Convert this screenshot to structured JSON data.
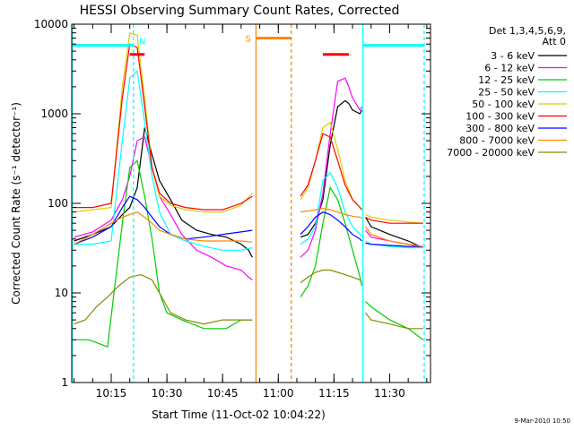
{
  "chart_data": {
    "type": "line",
    "title": "HESSI Observing Summary Count Rates, Corrected",
    "xlabel": "Start Time (11-Oct-02 10:04:22)",
    "ylabel": "Corrected Count Rate (s⁻¹ detector⁻¹)",
    "y_scale": "log",
    "ylim": [
      1,
      10000
    ],
    "xlim": [
      "10:04:22",
      "11:41:00"
    ],
    "x_ticks": [
      "10:15",
      "10:30",
      "10:45",
      "11:00",
      "11:15",
      "11:30"
    ],
    "y_ticks": [
      "1",
      "10",
      "100",
      "1000",
      "10000"
    ],
    "legend": {
      "header": [
        "Det 1,3,4,5,6,9,",
        "Att 0"
      ],
      "placement": "right"
    },
    "series": [
      {
        "name": "3 - 6 keV",
        "color": "#000000",
        "x": [
          "10:05",
          "10:10",
          "10:15",
          "10:18",
          "10:20",
          "10:22",
          "10:24",
          "10:26",
          "10:28",
          "10:31",
          "10:34",
          "10:38",
          "10:42",
          "10:46",
          "10:50",
          "10:52",
          "10:53",
          "GAP",
          "11:06",
          "11:08",
          "11:10",
          "11:12",
          "11:14",
          "11:16",
          "11:18",
          "11:19",
          "11:20",
          "11:22",
          "11:22.5",
          "GAP",
          "11:23.5",
          "11:25",
          "11:30",
          "11:35",
          "11:39"
        ],
        "y": [
          38,
          45,
          55,
          75,
          90,
          150,
          700,
          350,
          180,
          110,
          65,
          50,
          45,
          42,
          35,
          30,
          25,
          null,
          42,
          45,
          60,
          110,
          450,
          1200,
          1400,
          1300,
          1100,
          1000,
          1100,
          null,
          70,
          55,
          45,
          38,
          32
        ]
      },
      {
        "name": "6 - 12 keV",
        "color": "#ff00ff",
        "x": [
          "10:05",
          "10:10",
          "10:15",
          "10:18",
          "10:20",
          "10:22",
          "10:24",
          "10:26",
          "10:28",
          "10:31",
          "10:34",
          "10:38",
          "10:42",
          "10:46",
          "10:50",
          "10:52",
          "10:53",
          "GAP",
          "11:06",
          "11:08",
          "11:10",
          "11:12",
          "11:14",
          "11:16",
          "11:18",
          "11:19",
          "11:20",
          "11:22",
          "11:22.5",
          "GAP",
          "11:23.5",
          "11:25",
          "11:30",
          "11:35",
          "11:39"
        ],
        "y": [
          42,
          48,
          65,
          110,
          200,
          500,
          550,
          250,
          120,
          75,
          45,
          30,
          25,
          20,
          18,
          15,
          14,
          null,
          25,
          30,
          50,
          130,
          600,
          2300,
          2500,
          2000,
          1500,
          1100,
          1200,
          null,
          50,
          42,
          38,
          35,
          32
        ]
      },
      {
        "name": "12 - 25 keV",
        "color": "#00cc00",
        "x": [
          "10:05",
          "10:09",
          "10:14",
          "10:18",
          "10:20",
          "10:22",
          "10:24",
          "10:26",
          "10:28",
          "10:30",
          "10:34",
          "10:40",
          "10:46",
          "10:50",
          "10:53",
          "GAP",
          "11:06",
          "11:08",
          "11:10",
          "11:12",
          "11:14",
          "11:16",
          "11:18",
          "11:20",
          "11:22",
          "11:22.5",
          "GAP",
          "11:23.5",
          "11:25",
          "11:30",
          "11:35",
          "11:39"
        ],
        "y": [
          3,
          3,
          2.5,
          60,
          250,
          300,
          120,
          40,
          10,
          6,
          5,
          4,
          4,
          5,
          5,
          null,
          9,
          12,
          20,
          60,
          150,
          110,
          60,
          30,
          15,
          12,
          null,
          8,
          7,
          5,
          4,
          3
        ]
      },
      {
        "name": "25 - 50 keV",
        "color": "#00ffff",
        "x": [
          "10:05",
          "10:10",
          "10:15",
          "10:18",
          "10:20",
          "10:22",
          "10:24",
          "10:26",
          "10:28",
          "10:31",
          "10:35",
          "10:40",
          "10:45",
          "10:50",
          "10:53",
          "GAP",
          "11:06",
          "11:08",
          "11:10",
          "11:12",
          "11:14",
          "11:16",
          "11:18",
          "11:20",
          "11:22",
          "11:22.5",
          "GAP",
          "11:23.5",
          "11:25",
          "11:30",
          "11:35",
          "11:39"
        ],
        "y": [
          35,
          35,
          38,
          500,
          2500,
          3000,
          800,
          200,
          80,
          45,
          38,
          33,
          30,
          30,
          32,
          null,
          35,
          40,
          55,
          180,
          220,
          150,
          80,
          55,
          45,
          42,
          null,
          38,
          35,
          33,
          32,
          32
        ]
      },
      {
        "name": "50 - 100 keV",
        "color": "#ddcc00",
        "x": [
          "10:05",
          "10:10",
          "10:15",
          "10:18",
          "10:20",
          "10:22",
          "10:24",
          "10:26",
          "10:28",
          "10:31",
          "10:35",
          "10:40",
          "10:45",
          "10:50",
          "10:53",
          "GAP",
          "11:06",
          "11:08",
          "11:10",
          "11:12",
          "11:14",
          "11:16",
          "11:18",
          "11:20",
          "11:22",
          "11:22.5",
          "GAP",
          "11:23.5",
          "11:25",
          "11:30",
          "11:35",
          "11:39"
        ],
        "y": [
          80,
          85,
          90,
          2000,
          8000,
          7500,
          1500,
          250,
          120,
          95,
          85,
          80,
          80,
          95,
          130,
          null,
          110,
          150,
          300,
          700,
          800,
          400,
          180,
          110,
          90,
          85,
          null,
          75,
          70,
          65,
          62,
          60
        ]
      },
      {
        "name": "100 - 300 keV",
        "color": "#ff0000",
        "x": [
          "10:05",
          "10:10",
          "10:15",
          "10:18",
          "10:20",
          "10:22",
          "10:24",
          "10:26",
          "10:28",
          "10:31",
          "10:35",
          "10:40",
          "10:45",
          "10:50",
          "10:53",
          "GAP",
          "11:06",
          "11:08",
          "11:10",
          "11:12",
          "11:14",
          "11:16",
          "11:18",
          "11:20",
          "11:22",
          "11:22.5",
          "GAP",
          "11:23.5",
          "11:25",
          "11:30",
          "11:35",
          "11:39"
        ],
        "y": [
          90,
          90,
          100,
          1500,
          6000,
          5500,
          1200,
          250,
          130,
          100,
          90,
          85,
          85,
          100,
          120,
          null,
          120,
          160,
          300,
          600,
          550,
          300,
          160,
          110,
          90,
          85,
          null,
          70,
          65,
          60,
          60,
          60
        ]
      },
      {
        "name": "300 - 800 keV",
        "color": "#0000ff",
        "x": [
          "10:05",
          "10:10",
          "10:15",
          "10:18",
          "10:20",
          "10:22",
          "10:24",
          "10:26",
          "10:28",
          "10:31",
          "10:35",
          "10:40",
          "10:45",
          "10:50",
          "10:53",
          "GAP",
          "11:06",
          "11:08",
          "11:10",
          "11:12",
          "11:14",
          "11:16",
          "11:18",
          "11:20",
          "11:22",
          "11:22.5",
          "GAP",
          "11:23.5",
          "11:25",
          "11:30",
          "11:35",
          "11:39"
        ],
        "y": [
          35,
          42,
          55,
          90,
          120,
          110,
          90,
          70,
          55,
          45,
          40,
          42,
          45,
          48,
          50,
          null,
          45,
          55,
          70,
          80,
          75,
          65,
          55,
          45,
          40,
          38,
          null,
          36,
          35,
          34,
          33,
          33
        ]
      },
      {
        "name": "800 - 7000 keV",
        "color": "#ff8800",
        "x": [
          "10:05",
          "10:10",
          "10:15",
          "10:18",
          "10:20",
          "10:22",
          "10:24",
          "10:26",
          "10:28",
          "10:31",
          "10:35",
          "10:40",
          "10:45",
          "10:50",
          "10:53",
          "GAP",
          "11:06",
          "11:08",
          "11:10",
          "11:12",
          "11:14",
          "11:16",
          "11:18",
          "11:20",
          "11:22",
          "11:22.5",
          "GAP",
          "11:23.5",
          "11:25",
          "11:30",
          "11:35",
          "11:39"
        ],
        "y": [
          35,
          45,
          60,
          70,
          75,
          80,
          70,
          60,
          50,
          45,
          40,
          38,
          38,
          38,
          37,
          null,
          80,
          82,
          85,
          88,
          85,
          80,
          75,
          72,
          70,
          68,
          null,
          55,
          45,
          38,
          35,
          33
        ]
      },
      {
        "name": "7000 - 20000 keV",
        "color": "#888800",
        "x": [
          "10:05",
          "10:08",
          "10:11",
          "10:14",
          "10:17",
          "10:20",
          "10:23",
          "10:26",
          "10:28",
          "10:31",
          "10:35",
          "10:40",
          "10:45",
          "10:50",
          "10:53",
          "GAP",
          "11:06",
          "11:08",
          "11:10",
          "11:12",
          "11:14",
          "11:16",
          "11:18",
          "11:20",
          "11:22",
          "11:22.5",
          "GAP",
          "11:23.5",
          "11:25",
          "11:30",
          "11:35",
          "11:39"
        ],
        "y": [
          4.5,
          5,
          7,
          9,
          12,
          15,
          16,
          14,
          10,
          6,
          5,
          4.5,
          5,
          5,
          5,
          null,
          13,
          15,
          17,
          18,
          18,
          17,
          16,
          15,
          14,
          13,
          null,
          6,
          5,
          4.5,
          4,
          4
        ]
      }
    ],
    "annotations": {
      "labels": [
        "N",
        "S"
      ],
      "colors": {
        "cyan": "#00ffff",
        "orange": "#ff8800",
        "red": "#ff0000"
      }
    }
  },
  "footer": {
    "datestamp": "9-Mar-2010 10:50"
  }
}
